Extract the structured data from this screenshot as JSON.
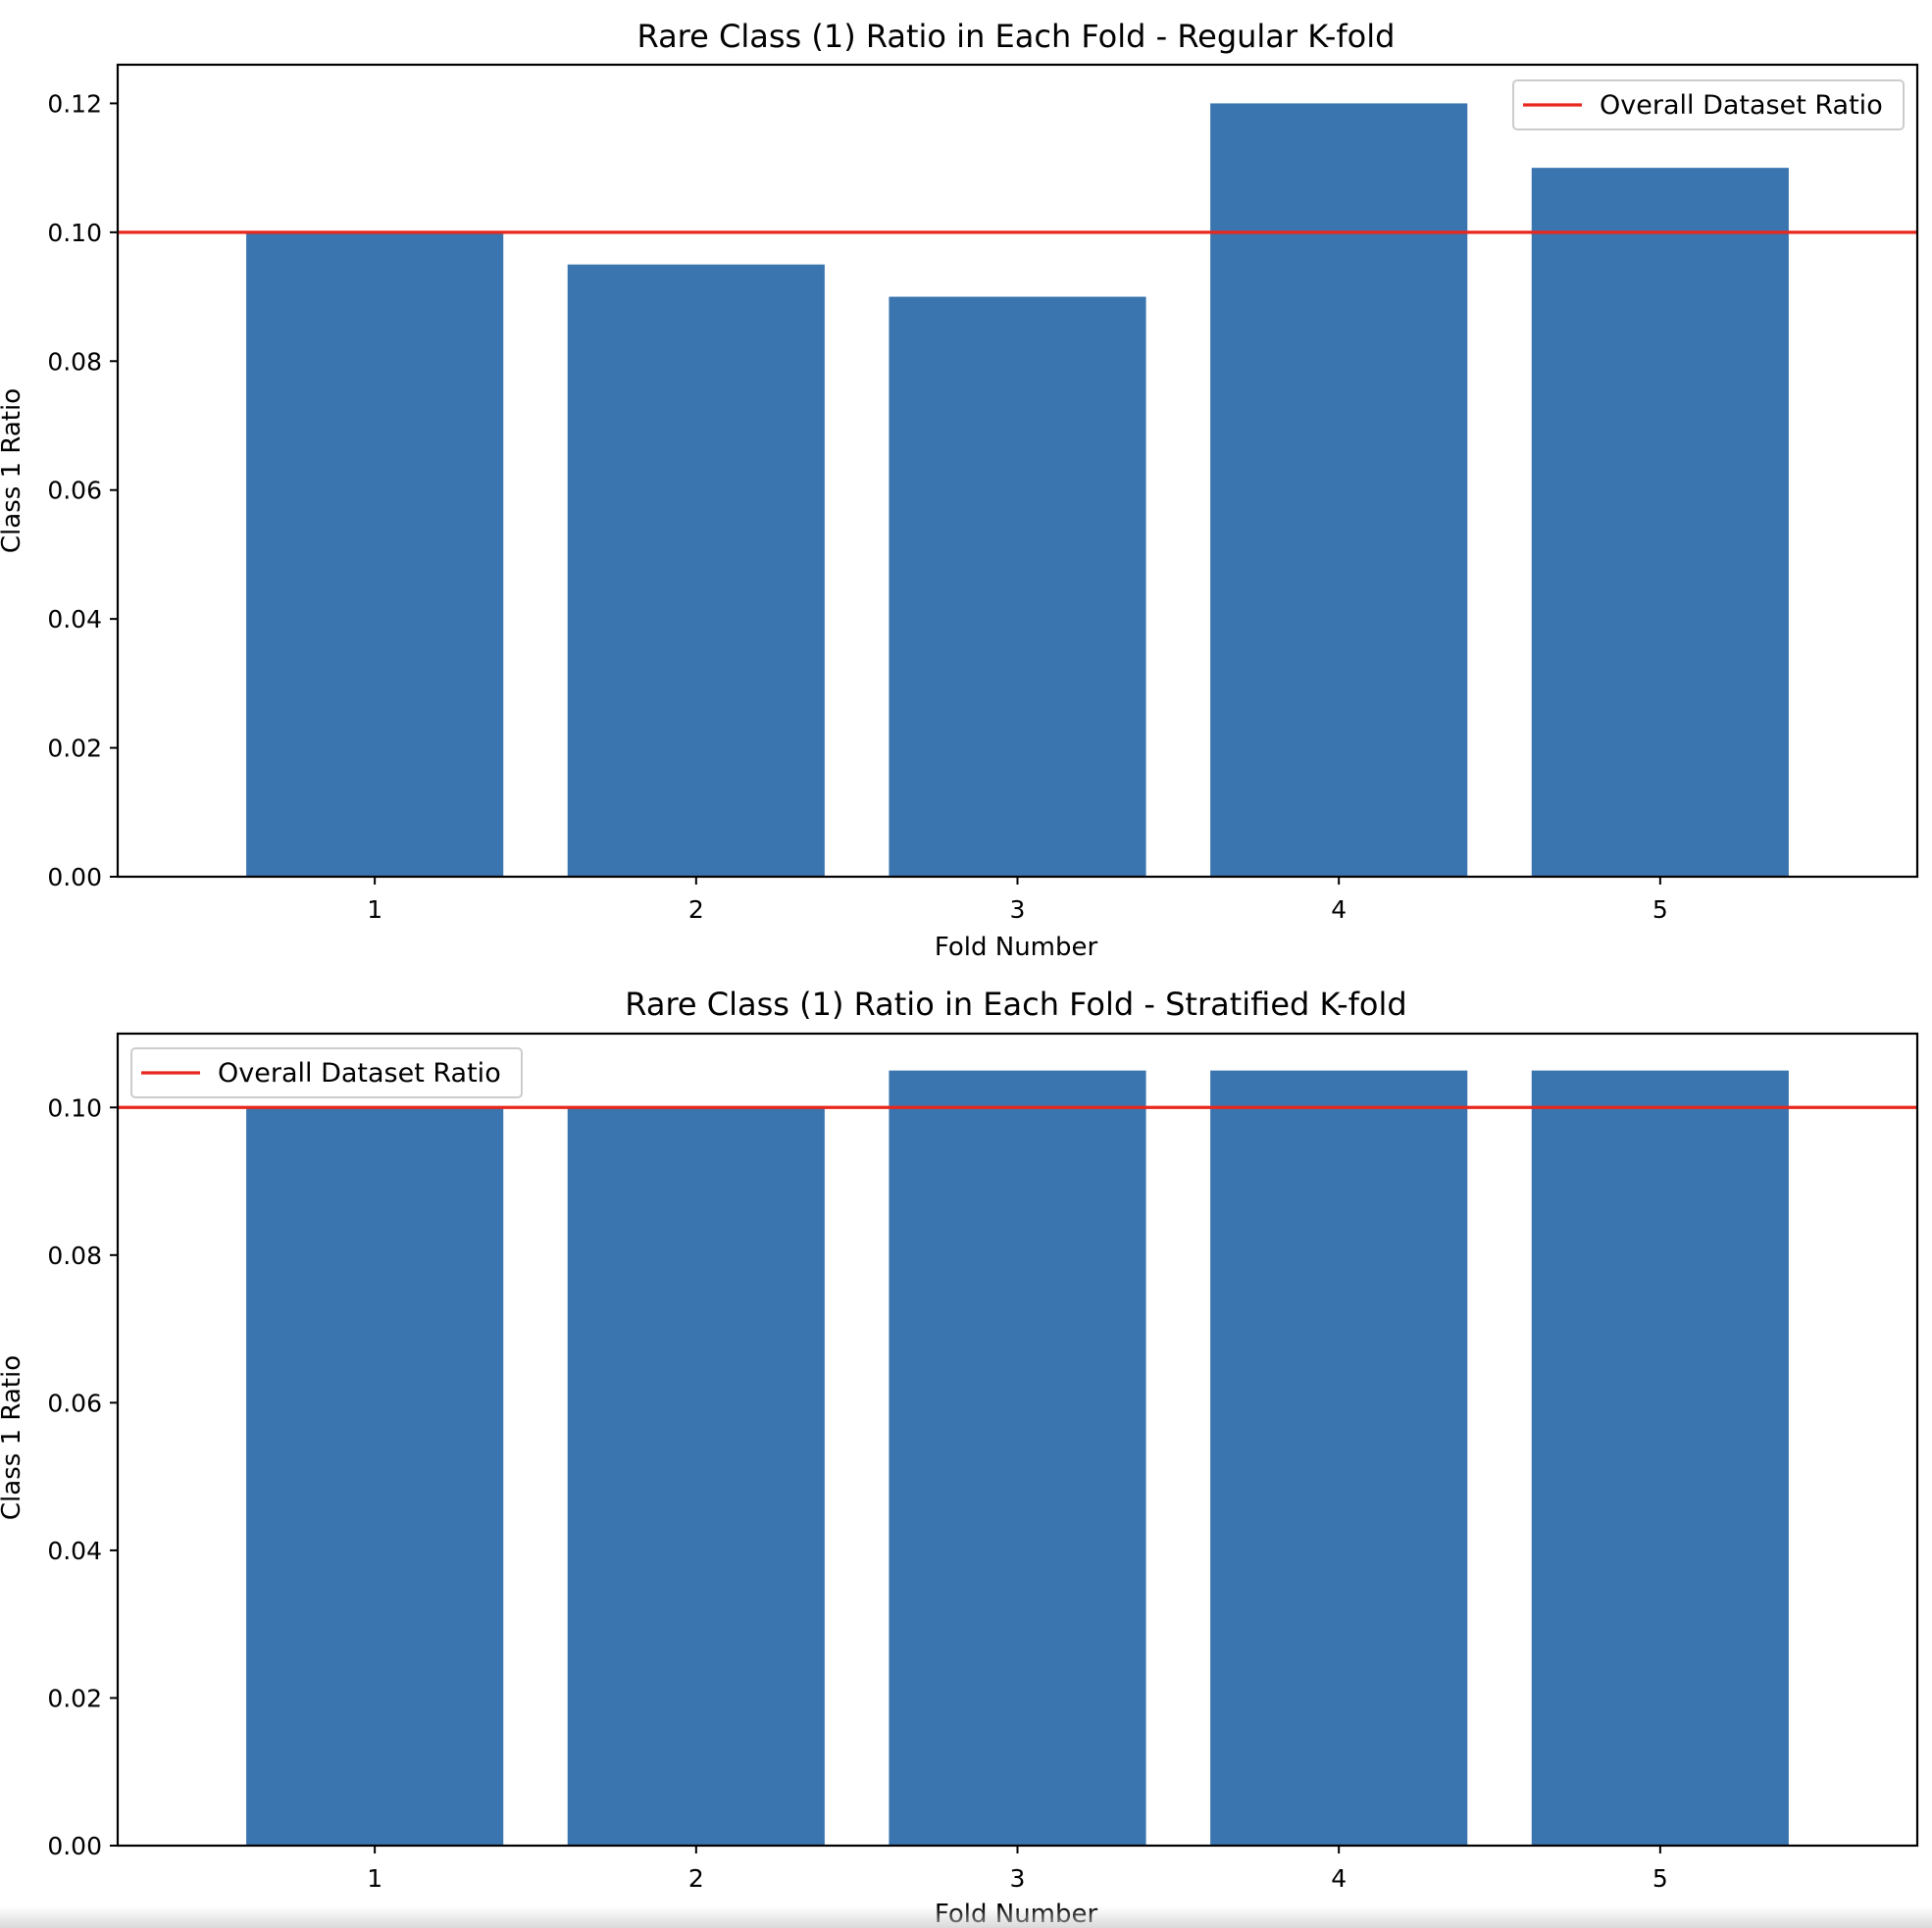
{
  "chart_data": [
    {
      "type": "bar",
      "title": "Rare Class (1) Ratio in Each Fold - Regular K-fold",
      "xlabel": "Fold Number",
      "ylabel": "Class 1 Ratio",
      "categories": [
        "1",
        "2",
        "3",
        "4",
        "5"
      ],
      "values": [
        0.1,
        0.095,
        0.09,
        0.12,
        0.11
      ],
      "ylim": [
        0,
        0.126
      ],
      "yticks": [
        0.0,
        0.02,
        0.04,
        0.06,
        0.08,
        0.1,
        0.12
      ],
      "ytick_labels": [
        "0.00",
        "0.02",
        "0.04",
        "0.06",
        "0.08",
        "0.10",
        "0.12"
      ],
      "reference_line": {
        "label": "Overall Dataset Ratio",
        "value": 0.1,
        "color": "#e8281e"
      },
      "legend_position": "upper right",
      "bar_color": "#3b75af",
      "grid": false
    },
    {
      "type": "bar",
      "title": "Rare Class (1) Ratio in Each Fold - Stratified K-fold",
      "xlabel": "Fold Number",
      "ylabel": "Class 1 Ratio",
      "categories": [
        "1",
        "2",
        "3",
        "4",
        "5"
      ],
      "values": [
        0.1,
        0.1,
        0.105,
        0.105,
        0.105
      ],
      "ylim": [
        0,
        0.11
      ],
      "yticks": [
        0.0,
        0.02,
        0.04,
        0.06,
        0.08,
        0.1
      ],
      "ytick_labels": [
        "0.00",
        "0.02",
        "0.04",
        "0.06",
        "0.08",
        "0.10"
      ],
      "reference_line": {
        "label": "Overall Dataset Ratio",
        "value": 0.1,
        "color": "#e8281e"
      },
      "legend_position": "upper left",
      "bar_color": "#3b75af",
      "grid": false
    }
  ]
}
